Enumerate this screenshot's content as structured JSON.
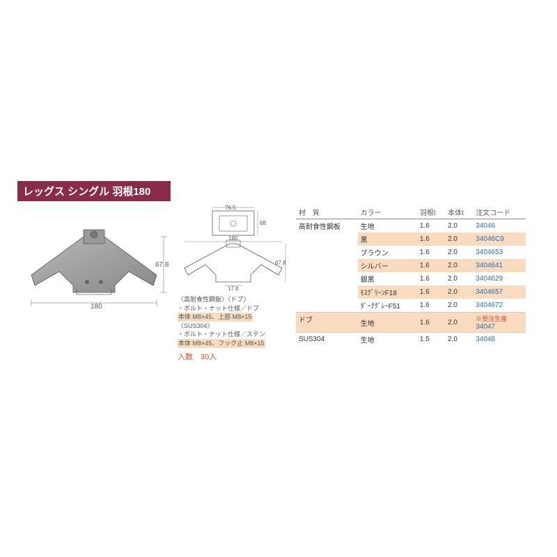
{
  "title": "レッグス シングル 羽根180",
  "productDimensions": {
    "width": "180",
    "height": "67.8",
    "topWidth": "76.5",
    "innerHeight": "68",
    "innerWidth": "17.6"
  },
  "specNotes": {
    "line1": "〈高耐食性鋼鈑〉〈ドブ〉",
    "line2": "・ボルト・ナット仕様／ドブ",
    "line3": "本体 M8×45、上部 M8×15",
    "line4": "〈SUS304〉",
    "line5": "・ボルト・ナット仕様／ステン",
    "line6": "本体 M8×45、フック止 M8×15"
  },
  "quantity": "入数　30入",
  "tableHeaders": {
    "material": "材　質",
    "color": "カラー",
    "blade_t": "羽根t",
    "body_t": "本体t",
    "code": "注文コード"
  },
  "tableData": {
    "material1": "高耐食性鋼板",
    "material2": "ドブ",
    "material3": "SUS304",
    "rows": [
      {
        "color": "生地",
        "blade": "1.6",
        "body": "2.0",
        "code": "34046",
        "hl": false
      },
      {
        "color": "黒",
        "blade": "1.6",
        "body": "2.0",
        "code": "34046C9",
        "hl": true
      },
      {
        "color": "ブラウン",
        "blade": "1.6",
        "body": "2.0",
        "code": "3404653",
        "hl": false
      },
      {
        "color": "シルバー",
        "blade": "1.6",
        "body": "2.0",
        "code": "3404641",
        "hl": true
      },
      {
        "color": "銀黒",
        "blade": "1.6",
        "body": "2.0",
        "code": "3404629",
        "hl": false
      },
      {
        "color": "ﾓｽｸﾞﾘｰﾝF18",
        "blade": "1.6",
        "body": "2.0",
        "code": "3404657",
        "hl": true
      },
      {
        "color": "ﾀﾞｰｸｸﾞﾚｰF51",
        "blade": "1.6",
        "body": "2.0",
        "code": "3404672",
        "hl": false
      }
    ],
    "dobuRow": {
      "color": "生地",
      "blade": "1.6",
      "body": "2.0",
      "code": "34047",
      "special": "※受注生産"
    },
    "susRow": {
      "color": "生地",
      "blade": "1.5",
      "body": "2.0",
      "code": "34048"
    }
  },
  "colors": {
    "titleBg": "#8a2b4a",
    "highlight": "#f9dcc0",
    "codeColor": "#2a6bb8",
    "accentColor": "#d94a2a"
  }
}
